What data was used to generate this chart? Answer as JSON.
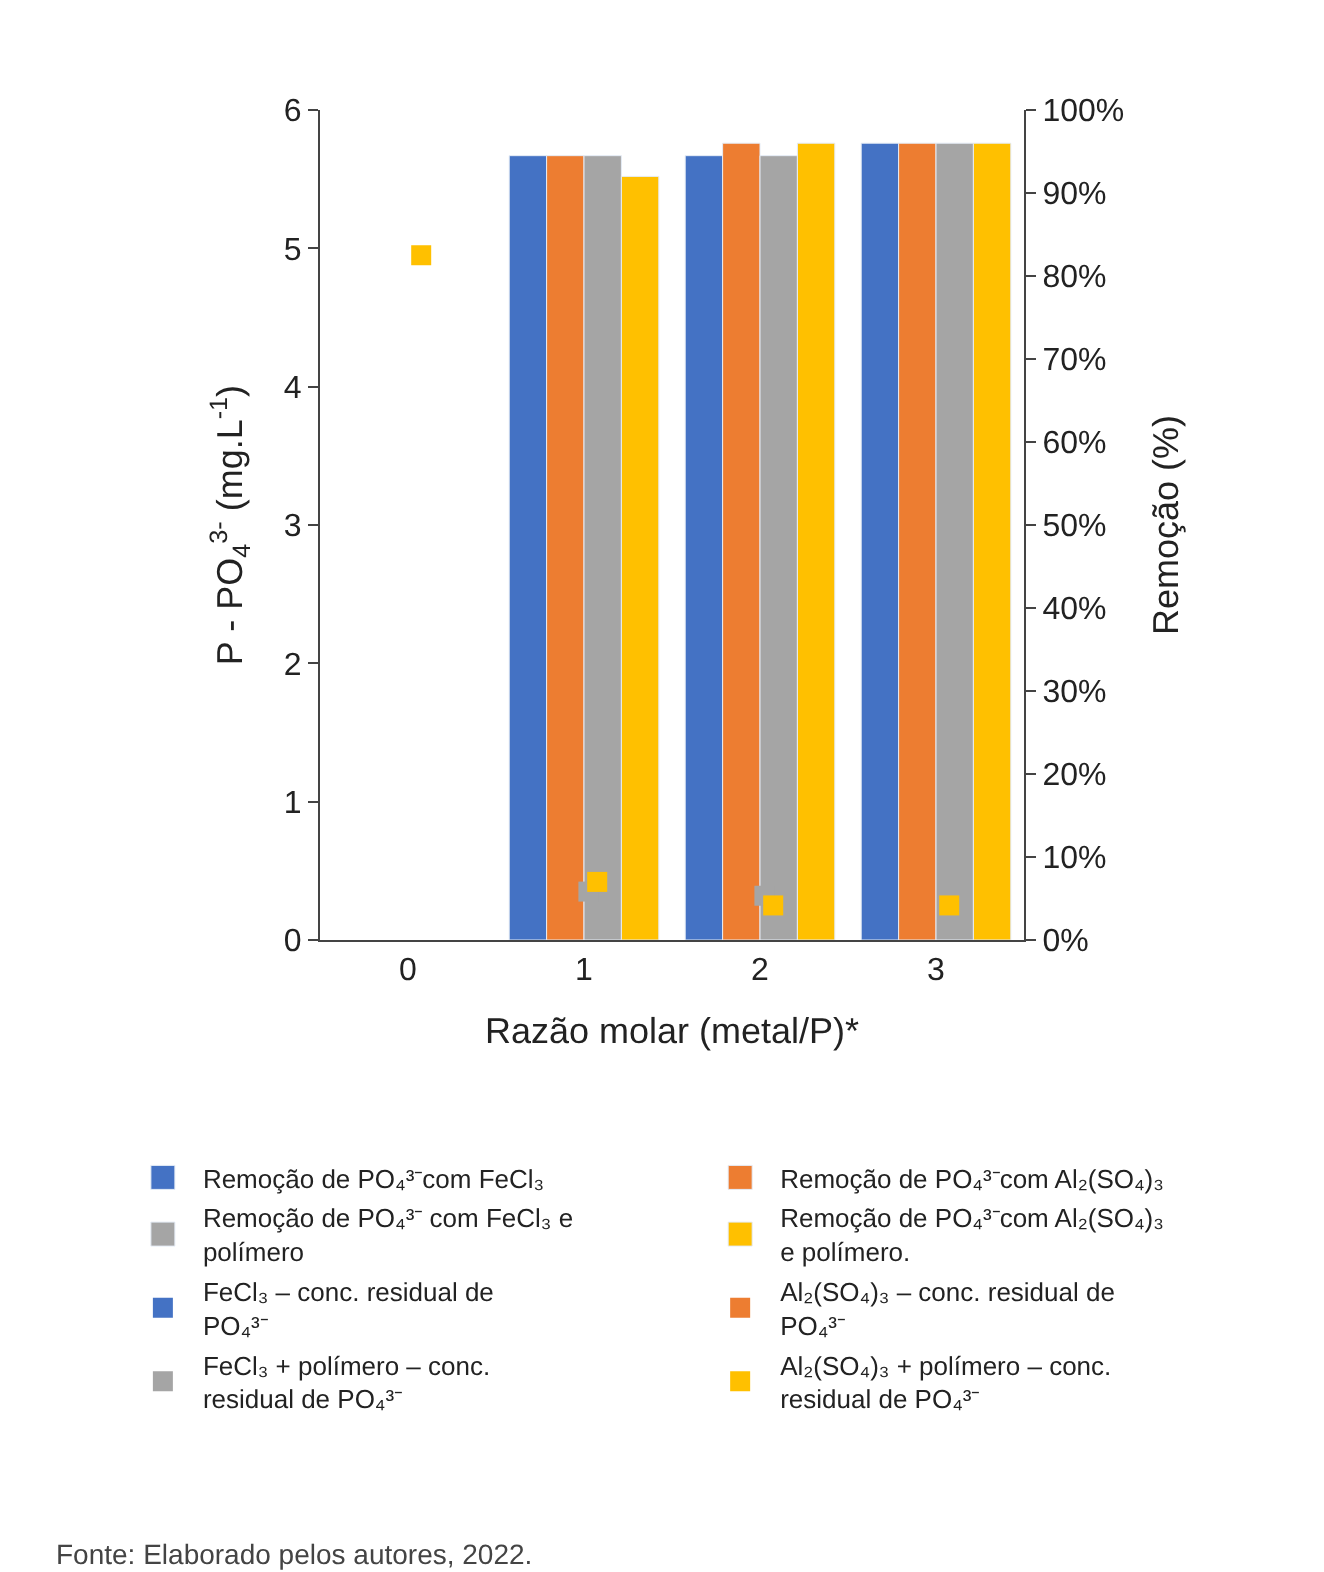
{
  "chart_data": {
    "type": "bar",
    "categories": [
      "0",
      "1",
      "2",
      "3"
    ],
    "xlabel": "Razão molar (metal/P)*",
    "ylabel": "P - PO$_{4}$$^{3-}$ (mg.L$^{-1}$)",
    "y2label": "Remoção (%)",
    "ylim": [
      0,
      6
    ],
    "yticks": [
      0,
      1,
      2,
      3,
      4,
      5,
      6
    ],
    "y2lim": [
      0,
      100
    ],
    "y2ticks": [
      {
        "value": 0,
        "label": "0%"
      },
      {
        "value": 10,
        "label": "10%"
      },
      {
        "value": 20,
        "label": "20%"
      },
      {
        "value": 30,
        "label": "30%"
      },
      {
        "value": 40,
        "label": "40%"
      },
      {
        "value": 50,
        "label": "50%"
      },
      {
        "value": 60,
        "label": "60%"
      },
      {
        "value": 70,
        "label": "70%"
      },
      {
        "value": 80,
        "label": "80%"
      },
      {
        "value": 90,
        "label": "90%"
      },
      {
        "value": 100,
        "label": "100%"
      }
    ],
    "series": [
      {
        "name": "Remoção de PO₄³⁻com FeCl₃",
        "axis": "y2",
        "color": "#4472c4",
        "values": [
          null,
          94.5,
          94.5,
          96
        ]
      },
      {
        "name": "Remoção de PO₄³⁻com Al₂(SO₄)₃",
        "axis": "y2",
        "color": "#ed7d31",
        "values": [
          null,
          94.5,
          96,
          96
        ]
      },
      {
        "name": "Remoção de PO₄³⁻ com FeCl₃ e polímero",
        "axis": "y2",
        "color": "#a5a5a5",
        "values": [
          null,
          94.5,
          94.5,
          96
        ]
      },
      {
        "name": "Remoção de PO₄³⁻com Al₂(SO₄)₃ e polímero.",
        "axis": "y2",
        "color": "#ffc000",
        "values": [
          null,
          92,
          96,
          96
        ]
      },
      {
        "name": "FeCl₃ – conc. residual de PO₄³⁻",
        "type": "scatter",
        "marker": "square",
        "color": "#4472c4",
        "values": [
          null,
          null,
          null,
          null
        ]
      },
      {
        "name": "Al₂(SO₄)₃ – conc. residual de PO₄³⁻",
        "type": "scatter",
        "marker": "square",
        "color": "#ed7d31",
        "values": [
          null,
          null,
          null,
          null
        ]
      },
      {
        "name": "FeCl₃ + polímero – conc. residual de PO₄³⁻",
        "type": "scatter",
        "marker": "square",
        "color": "#a5a5a5",
        "values": [
          null,
          0.35,
          0.32,
          null
        ]
      },
      {
        "name": "Al₂(SO₄)₃ + polímero – conc. residual de PO₄³⁻",
        "type": "scatter",
        "marker": "square",
        "color": "#ffc000",
        "values": [
          4.95,
          0.42,
          0.25,
          0.25
        ]
      }
    ],
    "annotations": [
      "Fonte: Elaborado pelos autores, 2022."
    ],
    "legend": "bottom"
  }
}
